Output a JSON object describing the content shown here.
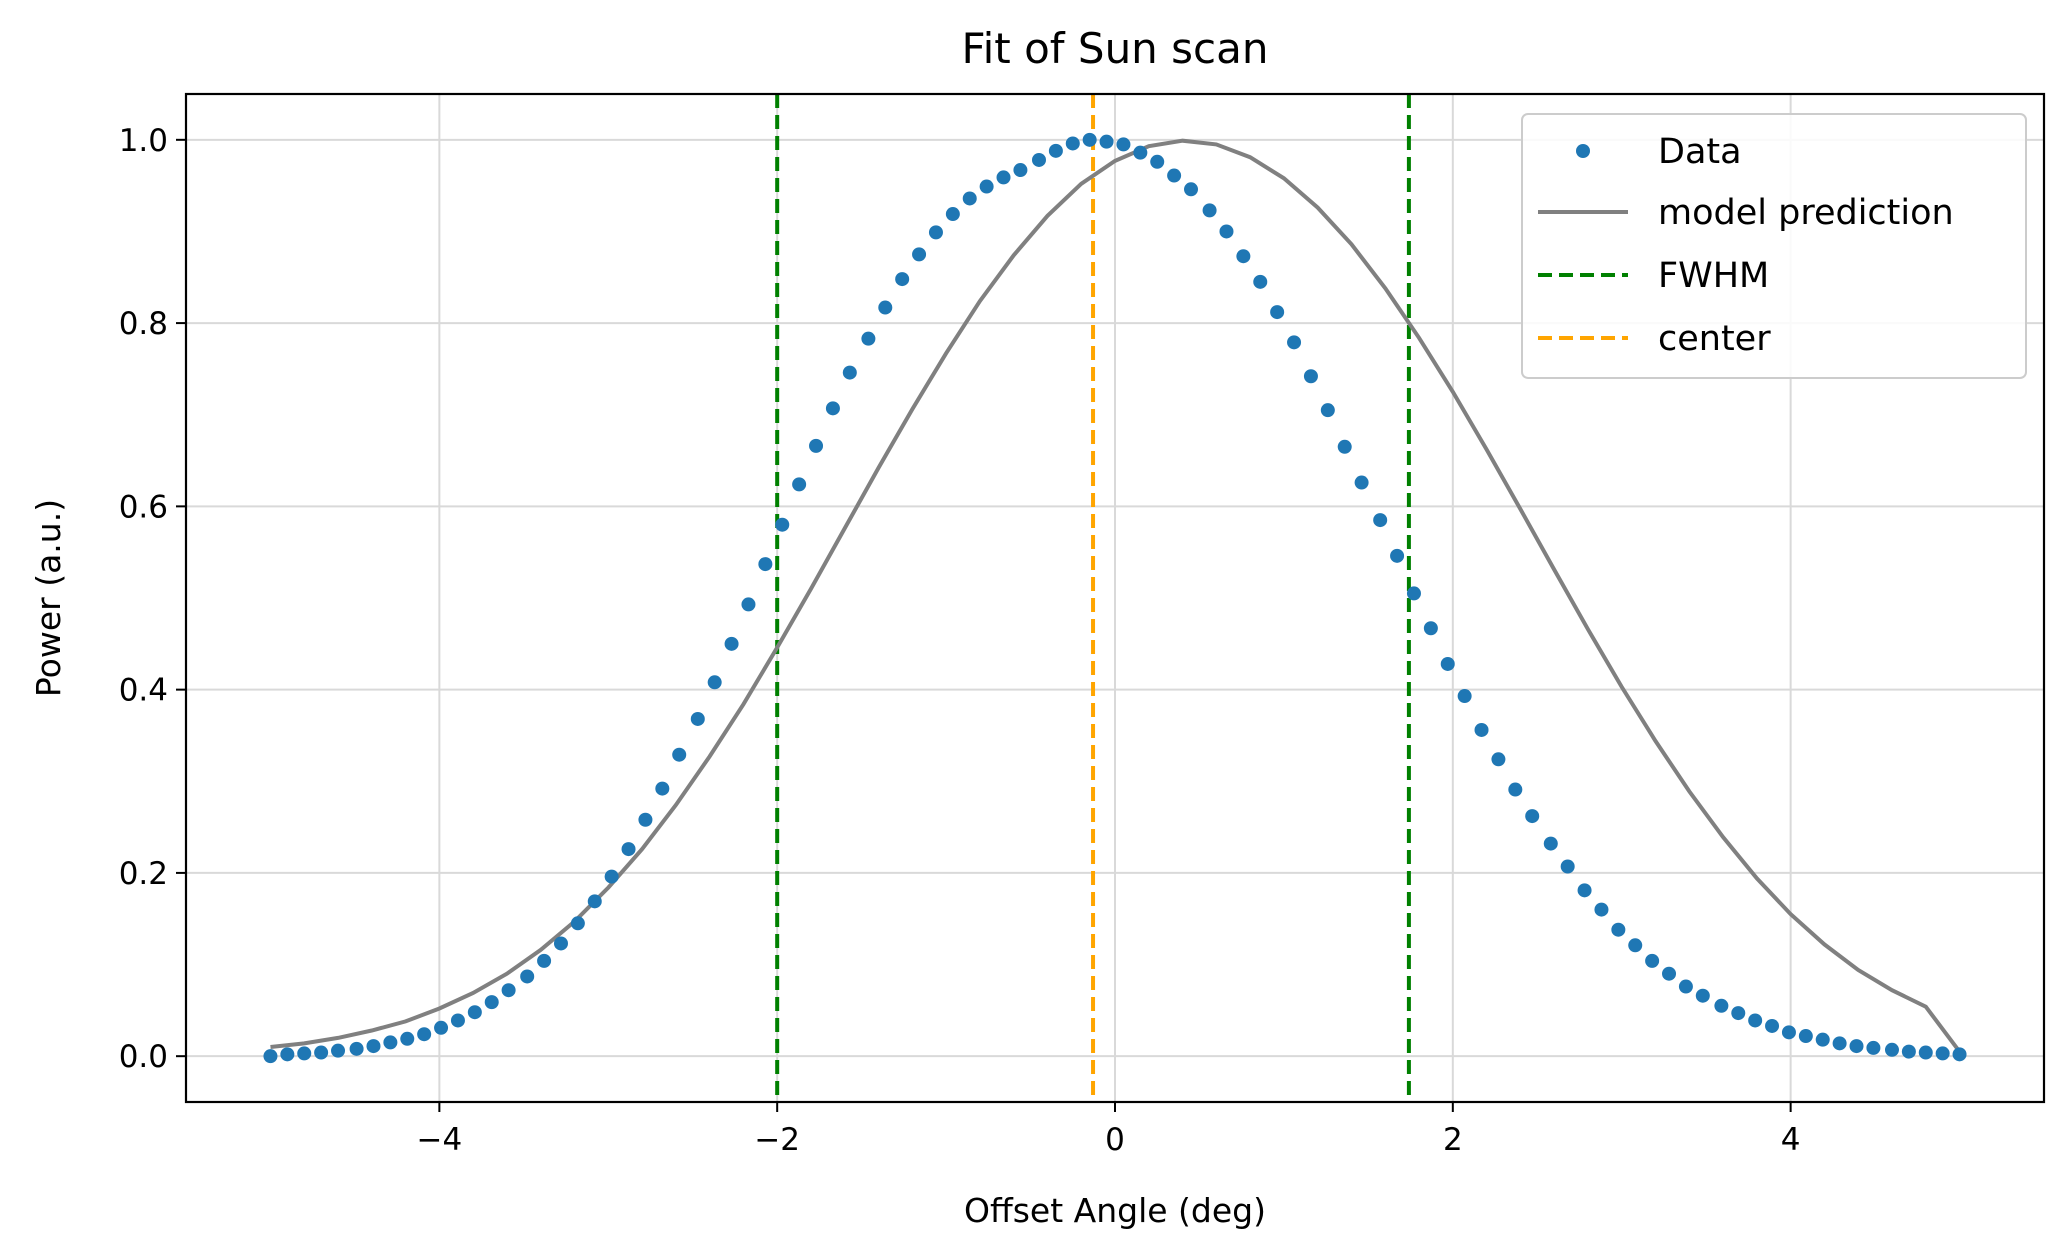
{
  "chart_data": {
    "type": "scatter",
    "title": "Fit of Sun scan",
    "xlabel": "Offset Angle (deg)",
    "ylabel": "Power (a.u.)",
    "xlim": [
      -5.5,
      5.5
    ],
    "ylim": [
      -0.05,
      1.05
    ],
    "xticks": [
      -4,
      -2,
      0,
      2,
      4
    ],
    "xtick_labels": [
      "−4",
      "−2",
      "0",
      "2",
      "4"
    ],
    "yticks": [
      0.0,
      0.2,
      0.4,
      0.6,
      0.8,
      1.0
    ],
    "ytick_labels": [
      "0.0",
      "0.2",
      "0.4",
      "0.6",
      "0.8",
      "1.0"
    ],
    "grid": true,
    "legend_position": "top-right",
    "series": [
      {
        "name": "Data",
        "kind": "scatter",
        "color": "#1f77b4",
        "x": [
          -5.0,
          -4.9,
          -4.8,
          -4.7,
          -4.6,
          -4.49,
          -4.39,
          -4.29,
          -4.19,
          -4.09,
          -3.99,
          -3.89,
          -3.79,
          -3.69,
          -3.59,
          -3.48,
          -3.38,
          -3.28,
          -3.18,
          -3.08,
          -2.98,
          -2.88,
          -2.78,
          -2.68,
          -2.58,
          -2.47,
          -2.37,
          -2.27,
          -2.17,
          -2.07,
          -1.97,
          -1.87,
          -1.77,
          -1.67,
          -1.57,
          -1.46,
          -1.36,
          -1.26,
          -1.16,
          -1.06,
          -0.96,
          -0.86,
          -0.76,
          -0.66,
          -0.56,
          -0.45,
          -0.35,
          -0.25,
          -0.15,
          -0.05,
          0.05,
          0.15,
          0.25,
          0.35,
          0.45,
          0.56,
          0.66,
          0.76,
          0.86,
          0.96,
          1.06,
          1.16,
          1.26,
          1.36,
          1.46,
          1.57,
          1.67,
          1.77,
          1.87,
          1.97,
          2.07,
          2.17,
          2.27,
          2.37,
          2.47,
          2.58,
          2.68,
          2.78,
          2.88,
          2.98,
          3.08,
          3.18,
          3.28,
          3.38,
          3.48,
          3.59,
          3.69,
          3.79,
          3.89,
          3.99,
          4.09,
          4.19,
          4.29,
          4.39,
          4.49,
          4.6,
          4.7,
          4.8,
          4.9,
          5.0
        ],
        "y": [
          0.0,
          0.002,
          0.003,
          0.004,
          0.006,
          0.008,
          0.011,
          0.015,
          0.019,
          0.024,
          0.031,
          0.039,
          0.048,
          0.059,
          0.072,
          0.087,
          0.104,
          0.123,
          0.145,
          0.169,
          0.196,
          0.226,
          0.258,
          0.292,
          0.329,
          0.368,
          0.408,
          0.45,
          0.493,
          0.537,
          0.58,
          0.624,
          0.666,
          0.707,
          0.746,
          0.783,
          0.817,
          0.848,
          0.875,
          0.899,
          0.919,
          0.936,
          0.949,
          0.959,
          0.967,
          0.978,
          0.988,
          0.996,
          1.0,
          0.998,
          0.995,
          0.986,
          0.976,
          0.961,
          0.946,
          0.923,
          0.9,
          0.873,
          0.845,
          0.812,
          0.779,
          0.742,
          0.705,
          0.665,
          0.626,
          0.585,
          0.546,
          0.505,
          0.467,
          0.428,
          0.393,
          0.356,
          0.324,
          0.291,
          0.262,
          0.232,
          0.207,
          0.181,
          0.16,
          0.138,
          0.121,
          0.104,
          0.09,
          0.076,
          0.066,
          0.055,
          0.047,
          0.039,
          0.033,
          0.026,
          0.022,
          0.018,
          0.014,
          0.011,
          0.009,
          0.007,
          0.005,
          0.004,
          0.003,
          0.002
        ]
      },
      {
        "name": "model prediction",
        "kind": "line",
        "color": "#808080",
        "x": [
          -5.0,
          -4.8,
          -4.6,
          -4.4,
          -4.2,
          -4.0,
          -3.8,
          -3.6,
          -3.4,
          -3.2,
          -3.0,
          -2.8,
          -2.6,
          -2.4,
          -2.2,
          -2.0,
          -1.8,
          -1.6,
          -1.4,
          -1.2,
          -1.0,
          -0.8,
          -0.6,
          -0.4,
          -0.2,
          0.0,
          0.2,
          0.4,
          0.6,
          0.8,
          1.0,
          1.2,
          1.4,
          1.6,
          1.8,
          2.0,
          2.2,
          2.4,
          2.6,
          2.8,
          3.0,
          3.2,
          3.4,
          3.6,
          3.8,
          4.0,
          4.2,
          4.4,
          4.6,
          4.8,
          5.0
        ],
        "y": [
          0.01,
          0.014,
          0.02,
          0.028,
          0.038,
          0.052,
          0.069,
          0.09,
          0.116,
          0.147,
          0.184,
          0.226,
          0.274,
          0.327,
          0.384,
          0.446,
          0.51,
          0.576,
          0.642,
          0.706,
          0.767,
          0.824,
          0.874,
          0.917,
          0.952,
          0.977,
          0.993,
          0.999,
          0.995,
          0.981,
          0.958,
          0.926,
          0.886,
          0.838,
          0.784,
          0.725,
          0.662,
          0.597,
          0.531,
          0.466,
          0.403,
          0.344,
          0.289,
          0.239,
          0.194,
          0.155,
          0.122,
          0.094,
          0.072,
          0.054,
          0.005
        ]
      },
      {
        "name": "FWHM",
        "kind": "vline",
        "color": "#008000",
        "x": [
          -2.0,
          1.74
        ]
      },
      {
        "name": "center",
        "kind": "vline",
        "color": "#ffa500",
        "x": [
          -0.13
        ]
      }
    ]
  }
}
